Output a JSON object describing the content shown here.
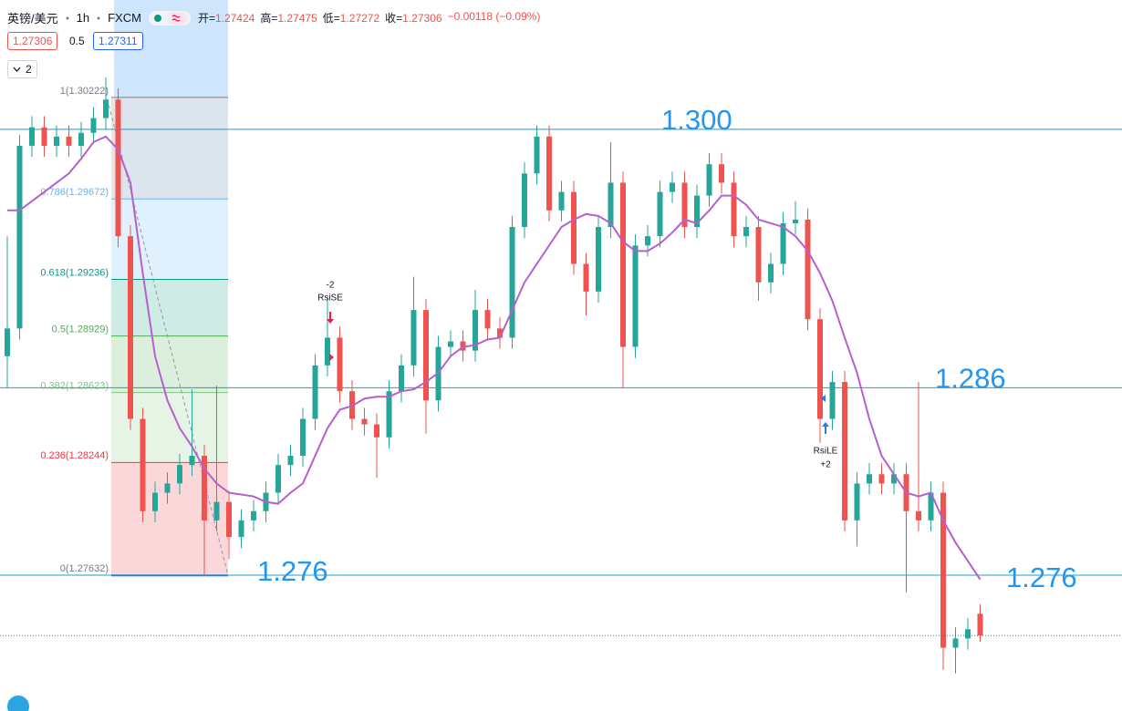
{
  "header": {
    "symbol": "英镑/美元",
    "interval": "1h",
    "source": "FXCM",
    "ohlc_labels": [
      "开=",
      "高=",
      "低=",
      "收="
    ],
    "change": "−0.00118 (−0.09%)",
    "spread": 0.5,
    "ask": 1.27311,
    "indicators": 2
  },
  "chart_data": {
    "type": "candlestick",
    "ylim": [
      1.26897,
      1.3075
    ],
    "up_color": "#26a69a",
    "down_color": "#ef5350",
    "ohlc": [
      [
        1.2882,
        1.2947,
        1.2865,
        1.2897
      ],
      [
        1.2897,
        1.3002,
        1.2891,
        1.2996
      ],
      [
        1.2996,
        1.3012,
        1.299,
        1.3006
      ],
      [
        1.3006,
        1.3012,
        1.299,
        1.2996
      ],
      [
        1.2996,
        1.3007,
        1.299,
        1.3001
      ],
      [
        1.3001,
        1.3007,
        1.299,
        1.2996
      ],
      [
        1.2996,
        1.3009,
        1.299,
        1.3003
      ],
      [
        1.3003,
        1.3017,
        1.2997,
        1.3011
      ],
      [
        1.3011,
        1.3033,
        1.3005,
        1.3021
      ],
      [
        1.3021,
        1.3027,
        1.2941,
        1.2947
      ],
      [
        1.2947,
        1.2953,
        1.2842,
        1.2848
      ],
      [
        1.2848,
        1.2854,
        1.2792,
        1.2798
      ],
      [
        1.2798,
        1.2814,
        1.2792,
        1.2808
      ],
      [
        1.2808,
        1.2819,
        1.2802,
        1.2813
      ],
      [
        1.2813,
        1.2829,
        1.2807,
        1.2823
      ],
      [
        1.2823,
        1.2864,
        1.2817,
        1.2828
      ],
      [
        1.2828,
        1.2834,
        1.2763,
        1.2793
      ],
      [
        1.2793,
        1.2866,
        1.2787,
        1.2803
      ],
      [
        1.2803,
        1.2809,
        1.2772,
        1.2784
      ],
      [
        1.2784,
        1.2799,
        1.2778,
        1.2793
      ],
      [
        1.2793,
        1.2804,
        1.2787,
        1.2798
      ],
      [
        1.2798,
        1.2814,
        1.2792,
        1.2808
      ],
      [
        1.2808,
        1.2829,
        1.2802,
        1.2823
      ],
      [
        1.2823,
        1.2834,
        1.2817,
        1.2828
      ],
      [
        1.2828,
        1.2854,
        1.2822,
        1.2848
      ],
      [
        1.2848,
        1.2883,
        1.2842,
        1.2877
      ],
      [
        1.2877,
        1.2914,
        1.2871,
        1.2892
      ],
      [
        1.2892,
        1.2898,
        1.2857,
        1.2863
      ],
      [
        1.2863,
        1.2869,
        1.2842,
        1.2848
      ],
      [
        1.2848,
        1.2854,
        1.2839,
        1.2845
      ],
      [
        1.2845,
        1.2851,
        1.2816,
        1.2838
      ],
      [
        1.2838,
        1.2869,
        1.2832,
        1.2863
      ],
      [
        1.2863,
        1.2883,
        1.2857,
        1.2877
      ],
      [
        1.2877,
        1.2925,
        1.2871,
        1.2907
      ],
      [
        1.2907,
        1.2913,
        1.284,
        1.2858
      ],
      [
        1.2858,
        1.2893,
        1.2852,
        1.2887
      ],
      [
        1.2887,
        1.2896,
        1.2881,
        1.289
      ],
      [
        1.289,
        1.2896,
        1.2879,
        1.2885
      ],
      [
        1.2885,
        1.2918,
        1.2879,
        1.2907
      ],
      [
        1.2907,
        1.2913,
        1.2891,
        1.2897
      ],
      [
        1.2897,
        1.2903,
        1.2886,
        1.2892
      ],
      [
        1.2892,
        1.2958,
        1.2886,
        1.2952
      ],
      [
        1.2952,
        1.2987,
        1.2946,
        1.2981
      ],
      [
        1.2981,
        1.3007,
        1.2975,
        1.3001
      ],
      [
        1.3001,
        1.3007,
        1.2955,
        1.2961
      ],
      [
        1.2961,
        1.2977,
        1.2955,
        1.2971
      ],
      [
        1.2971,
        1.2977,
        1.2926,
        1.2932
      ],
      [
        1.2932,
        1.2938,
        1.2904,
        1.2917
      ],
      [
        1.2917,
        1.2958,
        1.2911,
        1.2952
      ],
      [
        1.2952,
        1.2998,
        1.2946,
        1.2976
      ],
      [
        1.2976,
        1.2982,
        1.2865,
        1.2887
      ],
      [
        1.2887,
        1.2948,
        1.2881,
        1.2942
      ],
      [
        1.2942,
        1.2953,
        1.2936,
        1.2947
      ],
      [
        1.2947,
        1.2977,
        1.2941,
        1.2971
      ],
      [
        1.2971,
        1.2982,
        1.2965,
        1.2976
      ],
      [
        1.2976,
        1.2982,
        1.2946,
        1.2952
      ],
      [
        1.2952,
        1.2975,
        1.2946,
        1.2969
      ],
      [
        1.2969,
        1.2992,
        1.2963,
        1.2986
      ],
      [
        1.2986,
        1.2992,
        1.297,
        1.2976
      ],
      [
        1.2976,
        1.2982,
        1.2941,
        1.2947
      ],
      [
        1.2947,
        1.2958,
        1.2941,
        1.2952
      ],
      [
        1.2952,
        1.2958,
        1.2912,
        1.2922
      ],
      [
        1.2922,
        1.2938,
        1.2916,
        1.2932
      ],
      [
        1.2932,
        1.296,
        1.2926,
        1.2954
      ],
      [
        1.2954,
        1.2966,
        1.2948,
        1.2956
      ],
      [
        1.2956,
        1.2962,
        1.2896,
        1.2902
      ],
      [
        1.2902,
        1.2908,
        1.2835,
        1.2848
      ],
      [
        1.2848,
        1.2874,
        1.2842,
        1.2868
      ],
      [
        1.2868,
        1.2874,
        1.2787,
        1.2793
      ],
      [
        1.2793,
        1.2819,
        1.2779,
        1.2813
      ],
      [
        1.2813,
        1.2824,
        1.2807,
        1.2818
      ],
      [
        1.2818,
        1.2824,
        1.2807,
        1.2813
      ],
      [
        1.2813,
        1.2824,
        1.2807,
        1.2818
      ],
      [
        1.2818,
        1.2824,
        1.2754,
        1.2798
      ],
      [
        1.2798,
        1.2868,
        1.2787,
        1.2793
      ],
      [
        1.2793,
        1.2814,
        1.2787,
        1.2808
      ],
      [
        1.2808,
        1.2814,
        1.2712,
        1.2724
      ],
      [
        1.2724,
        1.2735,
        1.271,
        1.2729
      ],
      [
        1.2729,
        1.274,
        1.2723,
        1.2734
      ],
      [
        1.27424,
        1.27475,
        1.27272,
        1.27306
      ]
    ],
    "ma": {
      "color": "#b660cd",
      "values": [
        1.2961,
        1.2961,
        1.2966,
        1.2971,
        1.2976,
        1.2981,
        1.2989,
        1.2998,
        1.3001,
        1.2994,
        1.2976,
        1.2927,
        1.2882,
        1.2858,
        1.2843,
        1.2833,
        1.2821,
        1.2813,
        1.2808,
        1.2807,
        1.2806,
        1.2803,
        1.2802,
        1.2808,
        1.2813,
        1.2828,
        1.2843,
        1.2853,
        1.2855,
        1.2859,
        1.286,
        1.286,
        1.2863,
        1.2864,
        1.2868,
        1.2873,
        1.2882,
        1.2887,
        1.2888,
        1.2891,
        1.2892,
        1.2907,
        1.2922,
        1.2932,
        1.2942,
        1.2952,
        1.2956,
        1.2959,
        1.2958,
        1.2954,
        1.2944,
        1.2939,
        1.2939,
        1.2943,
        1.2949,
        1.2956,
        1.2954,
        1.2961,
        1.2969,
        1.2969,
        1.2964,
        1.2956,
        1.2954,
        1.2952,
        1.2947,
        1.2939,
        1.2927,
        1.2912,
        1.2892,
        1.2873,
        1.2848,
        1.2828,
        1.2818,
        1.2808,
        1.2806,
        1.2808,
        1.2793,
        1.2781,
        1.2771,
        1.2761
      ]
    },
    "fib_levels": [
      {
        "value": 1.30222,
        "label": "1(1.30222)",
        "color": "#787b86"
      },
      {
        "value": 1.29672,
        "label": "0.786(1.29672)",
        "color": "#64b5f6"
      },
      {
        "value": 1.29236,
        "label": "0.618(1.29236)",
        "color": "#089981"
      },
      {
        "value": 1.28929,
        "label": "0.5(1.28929)",
        "color": "#4caf50"
      },
      {
        "value": 1.28623,
        "label": "0.382(1.28623)",
        "color": "#81c784"
      },
      {
        "value": 1.28244,
        "label": "0.236(1.28244)",
        "color": "#f23645"
      },
      {
        "value": 1.27632,
        "label": "0(1.27632)",
        "color": "#787b86"
      }
    ],
    "levels": [
      {
        "value": 1.30049,
        "labels": [
          "1.300"
        ]
      },
      {
        "value": 1.28649,
        "labels": [
          "1.286"
        ]
      },
      {
        "value": 1.27633,
        "labels": [
          "1.276",
          "1.276"
        ]
      }
    ],
    "level_color": "#1e9bd7",
    "signals": [
      {
        "qty": "-2",
        "label": "RsiSE",
        "color": "#e91e4f"
      },
      {
        "qty": "+2",
        "label": "RsiLE",
        "color": "#2a7ae2"
      }
    ]
  }
}
